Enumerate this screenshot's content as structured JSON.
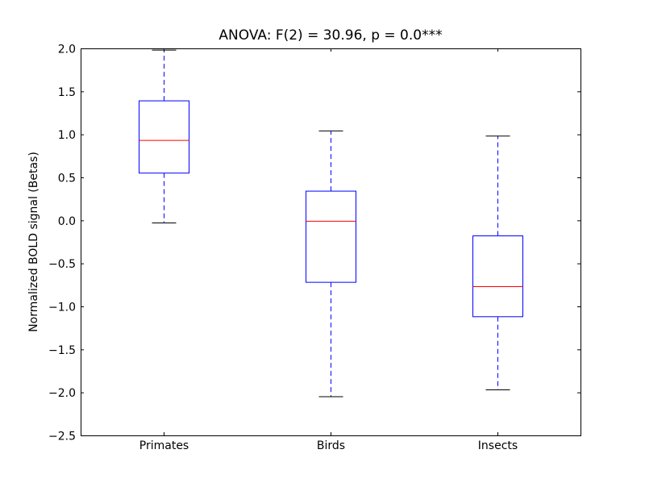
{
  "chart_data": {
    "type": "boxplot",
    "title": "ANOVA: F(2) = 30.96, p = 0.0***",
    "xlabel": "",
    "ylabel": "Normalized BOLD signal (Betas)",
    "ylim": [
      -2.5,
      2.0
    ],
    "yticks": [
      "2.0",
      "1.5",
      "1.0",
      "0.5",
      "0.0",
      "−0.5",
      "−1.0",
      "−1.5",
      "−2.0",
      "−2.5"
    ],
    "ytick_values": [
      2.0,
      1.5,
      1.0,
      0.5,
      0.0,
      -0.5,
      -1.0,
      -1.5,
      -2.0,
      -2.5
    ],
    "categories": [
      "Primates",
      "Birds",
      "Insects"
    ],
    "boxes": [
      {
        "whisker_low": -0.03,
        "q1": 0.55,
        "median": 0.93,
        "q3": 1.39,
        "whisker_high": 1.98
      },
      {
        "whisker_low": -2.05,
        "q1": -0.72,
        "median": -0.01,
        "q3": 0.34,
        "whisker_high": 1.04
      },
      {
        "whisker_low": -1.97,
        "q1": -1.12,
        "median": -0.77,
        "q3": -0.18,
        "whisker_high": 0.98
      }
    ],
    "grid": false,
    "colors": {
      "box": "#0000ff",
      "median": "#ff0000",
      "cap": "#000000"
    }
  }
}
